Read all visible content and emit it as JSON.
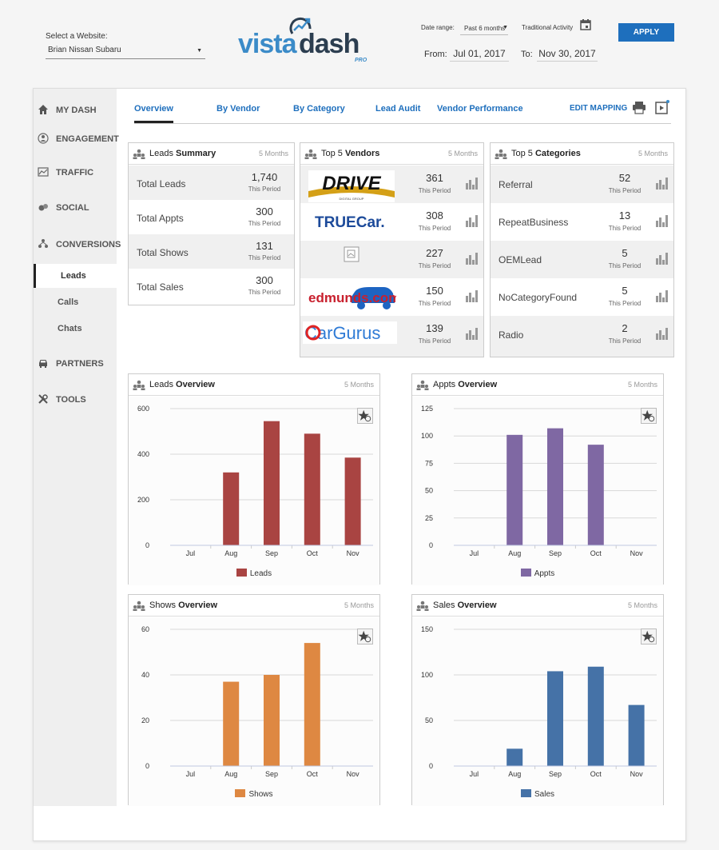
{
  "header": {
    "website_label": "Select a Website:",
    "website_value": "Brian Nissan Subaru",
    "logo": {
      "vista": "vista",
      "dash": "dash",
      "pro": "PRO"
    },
    "date_range_label": "Date range:",
    "date_range_value": "Past 6 months",
    "traditional_activity_label": "Traditional Activity",
    "from_label": "From:",
    "from_value": "Jul 01, 2017",
    "to_label": "To:",
    "to_value": "Nov 30, 2017",
    "apply_label": "APPLY"
  },
  "sidebar": {
    "items": [
      {
        "label": "MY DASH",
        "icon": "home-icon"
      },
      {
        "label": "ENGAGEMENT",
        "icon": "engagement-icon"
      },
      {
        "label": "TRAFFIC",
        "icon": "traffic-icon"
      },
      {
        "label": "SOCIAL",
        "icon": "social-icon"
      },
      {
        "label": "CONVERSIONS",
        "icon": "conversions-icon"
      },
      {
        "label": "PARTNERS",
        "icon": "car-icon"
      },
      {
        "label": "TOOLS",
        "icon": "tools-icon"
      }
    ],
    "sub_items": [
      "Leads",
      "Calls",
      "Chats"
    ],
    "active_sub": "Leads"
  },
  "tabs": [
    "Overview",
    "By Vendor",
    "By Category",
    "Lead Audit",
    "Vendor Performance"
  ],
  "active_tab": "Overview",
  "edit_mapping_label": "EDIT MAPPING",
  "leads_summary": {
    "title_prefix": "Leads",
    "title_bold": "Summary",
    "months": "5 Months",
    "rows": [
      {
        "name": "Total Leads",
        "value": "1,740",
        "period": "This Period"
      },
      {
        "name": "Total Appts",
        "value": "300",
        "period": "This Period"
      },
      {
        "name": "Total Shows",
        "value": "131",
        "period": "This Period"
      },
      {
        "name": "Total Sales",
        "value": "300",
        "period": "This Period"
      }
    ]
  },
  "top_vendors": {
    "title_prefix": "Top 5",
    "title_bold": "Vendors",
    "months": "5 Months",
    "rows": [
      {
        "vendor": "DRIVE",
        "value": "361",
        "period": "This Period"
      },
      {
        "vendor": "TRUECar.",
        "value": "308",
        "period": "This Period"
      },
      {
        "vendor": "",
        "value": "227",
        "period": "This Period"
      },
      {
        "vendor": "edmunds.com",
        "value": "150",
        "period": "This Period"
      },
      {
        "vendor": "CarGurus",
        "value": "139",
        "period": "This Period"
      }
    ]
  },
  "top_categories": {
    "title_prefix": "Top 5",
    "title_bold": "Categories",
    "months": "5 Months",
    "rows": [
      {
        "name": "Referral",
        "value": "52",
        "period": "This Period"
      },
      {
        "name": "RepeatBusiness",
        "value": "13",
        "period": "This Period"
      },
      {
        "name": "OEMLead",
        "value": "5",
        "period": "This Period"
      },
      {
        "name": "NoCategoryFound",
        "value": "5",
        "period": "This Period"
      },
      {
        "name": "Radio",
        "value": "2",
        "period": "This Period"
      }
    ]
  },
  "chart_data": [
    {
      "type": "bar",
      "title_prefix": "Leads",
      "title_bold": "Overview",
      "months": "5 Months",
      "categories": [
        "Jul",
        "Aug",
        "Sep",
        "Oct",
        "Nov"
      ],
      "series": [
        {
          "name": "Leads",
          "values": [
            0,
            320,
            545,
            490,
            385
          ]
        }
      ],
      "color": "#a94442",
      "ylim": [
        0,
        600
      ],
      "yticks": [
        0,
        200,
        400,
        600
      ]
    },
    {
      "type": "bar",
      "title_prefix": "Appts",
      "title_bold": "Overview",
      "months": "5 Months",
      "categories": [
        "Jul",
        "Aug",
        "Sep",
        "Oct",
        "Nov"
      ],
      "series": [
        {
          "name": "Appts",
          "values": [
            0,
            101,
            107,
            92,
            0
          ]
        }
      ],
      "color": "#7f68a3",
      "ylim": [
        0,
        125
      ],
      "yticks": [
        0,
        25,
        50,
        75,
        100,
        125
      ]
    },
    {
      "type": "bar",
      "title_prefix": "Shows",
      "title_bold": "Overview",
      "months": "5 Months",
      "categories": [
        "Jul",
        "Aug",
        "Sep",
        "Oct",
        "Nov"
      ],
      "series": [
        {
          "name": "Shows",
          "values": [
            0,
            37,
            40,
            54,
            0
          ]
        }
      ],
      "color": "#de8842",
      "ylim": [
        0,
        60
      ],
      "yticks": [
        0,
        20,
        40,
        60
      ]
    },
    {
      "type": "bar",
      "title_prefix": "Sales",
      "title_bold": "Overview",
      "months": "5 Months",
      "categories": [
        "Jul",
        "Aug",
        "Sep",
        "Oct",
        "Nov"
      ],
      "series": [
        {
          "name": "Sales",
          "values": [
            0,
            19,
            104,
            109,
            67
          ]
        }
      ],
      "color": "#4572a7",
      "ylim": [
        0,
        150
      ],
      "yticks": [
        0,
        50,
        100,
        150
      ]
    }
  ]
}
